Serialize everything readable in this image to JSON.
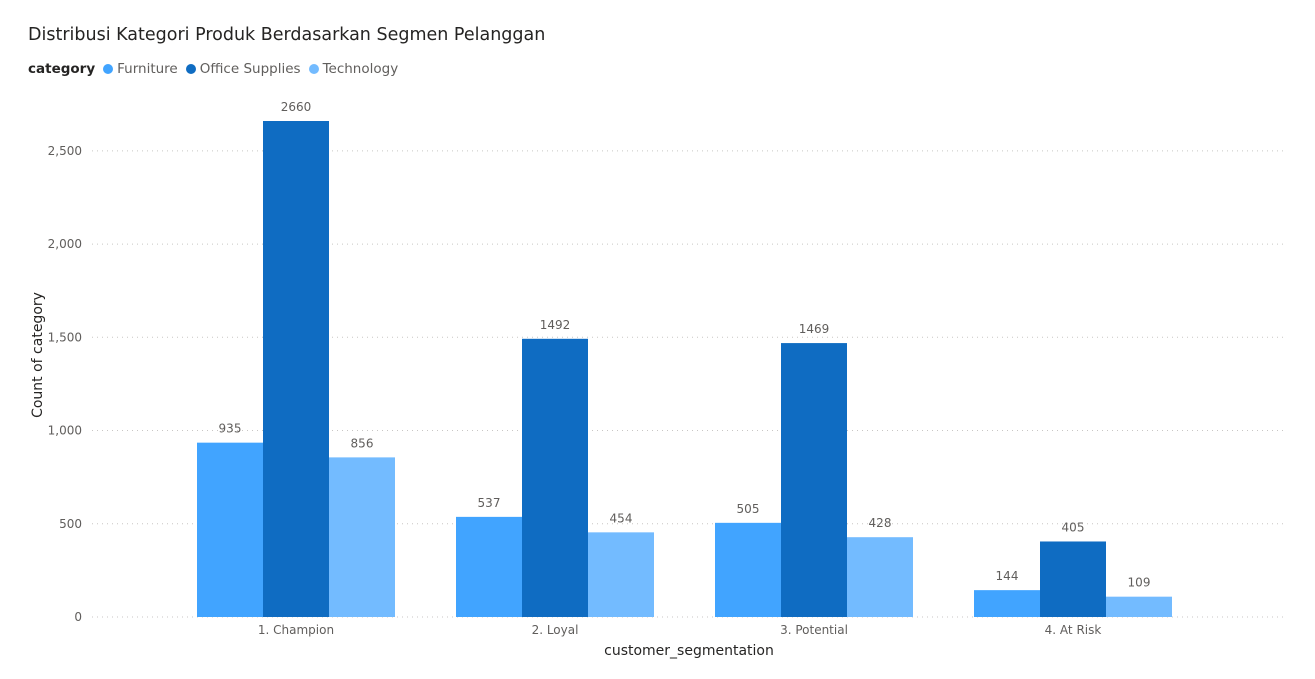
{
  "chart_data": {
    "type": "bar",
    "title": "Distribusi Kategori Produk Berdasarkan Segmen Pelanggan",
    "legend_title": "category",
    "legend_position": "top-left",
    "xlabel": "customer_segmentation",
    "ylabel": "Count of category",
    "categories": [
      "1. Champion",
      "2. Loyal",
      "3. Potential",
      "4. At Risk"
    ],
    "series": [
      {
        "name": "Furniture",
        "color": "#41a4ff",
        "values": [
          935,
          537,
          505,
          144
        ]
      },
      {
        "name": "Office Supplies",
        "color": "#0f6cc2",
        "values": [
          2660,
          1492,
          1469,
          405
        ]
      },
      {
        "name": "Technology",
        "color": "#73bbff",
        "values": [
          856,
          454,
          428,
          109
        ]
      }
    ],
    "ylim": [
      0,
      2660
    ],
    "yticks": [
      0,
      500,
      1000,
      1500,
      2000,
      2500
    ],
    "ytick_labels": [
      "0",
      "500",
      "1,000",
      "1,500",
      "2,000",
      "2,500"
    ],
    "grid": true
  }
}
